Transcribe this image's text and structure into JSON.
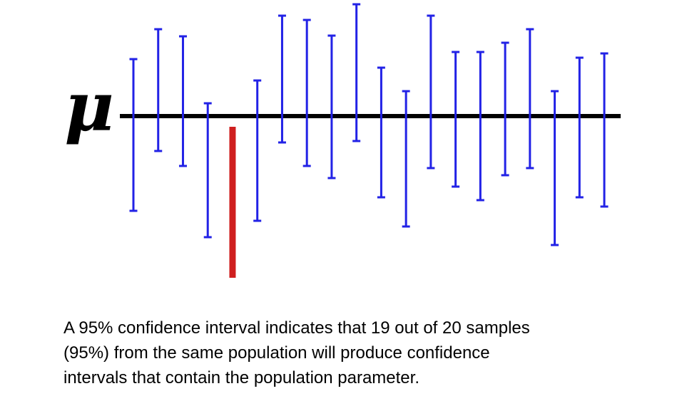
{
  "chart_data": {
    "type": "interval-plot",
    "parameter_symbol": "μ",
    "parameter_value": 0,
    "units": "arbitrary units relative to the population parameter line (μ = 0)",
    "samples": [
      {
        "sample": 1,
        "lower": -133,
        "upper": 80,
        "contains_parameter": true
      },
      {
        "sample": 2,
        "lower": -49,
        "upper": 122,
        "contains_parameter": true
      },
      {
        "sample": 3,
        "lower": -70,
        "upper": 112,
        "contains_parameter": true
      },
      {
        "sample": 4,
        "lower": -170,
        "upper": 18,
        "contains_parameter": true
      },
      {
        "sample": 5,
        "lower": -227,
        "upper": -15,
        "contains_parameter": false
      },
      {
        "sample": 6,
        "lower": -147,
        "upper": 50,
        "contains_parameter": true
      },
      {
        "sample": 7,
        "lower": -37,
        "upper": 141,
        "contains_parameter": true
      },
      {
        "sample": 8,
        "lower": -70,
        "upper": 135,
        "contains_parameter": true
      },
      {
        "sample": 9,
        "lower": -87,
        "upper": 113,
        "contains_parameter": true
      },
      {
        "sample": 10,
        "lower": -35,
        "upper": 157,
        "contains_parameter": true
      },
      {
        "sample": 11,
        "lower": -114,
        "upper": 68,
        "contains_parameter": true
      },
      {
        "sample": 12,
        "lower": -155,
        "upper": 35,
        "contains_parameter": true
      },
      {
        "sample": 13,
        "lower": -73,
        "upper": 141,
        "contains_parameter": true
      },
      {
        "sample": 14,
        "lower": -99,
        "upper": 90,
        "contains_parameter": true
      },
      {
        "sample": 15,
        "lower": -118,
        "upper": 90,
        "contains_parameter": true
      },
      {
        "sample": 16,
        "lower": -83,
        "upper": 103,
        "contains_parameter": true
      },
      {
        "sample": 17,
        "lower": -73,
        "upper": 122,
        "contains_parameter": true
      },
      {
        "sample": 18,
        "lower": -181,
        "upper": 35,
        "contains_parameter": true
      },
      {
        "sample": 19,
        "lower": -114,
        "upper": 82,
        "contains_parameter": true
      },
      {
        "sample": 20,
        "lower": -127,
        "upper": 88,
        "contains_parameter": true
      }
    ],
    "colors": {
      "interval_contains": "#2222e6",
      "interval_misses": "#cf1f1f",
      "parameter_line": "#000000"
    },
    "legend_position": "none",
    "grid": false
  },
  "caption": {
    "lines": [
      "A 95% confidence interval indicates that 19 out of 20 samples",
      "(95%) from the same population will produce confidence",
      "intervals that contain the population parameter."
    ]
  }
}
